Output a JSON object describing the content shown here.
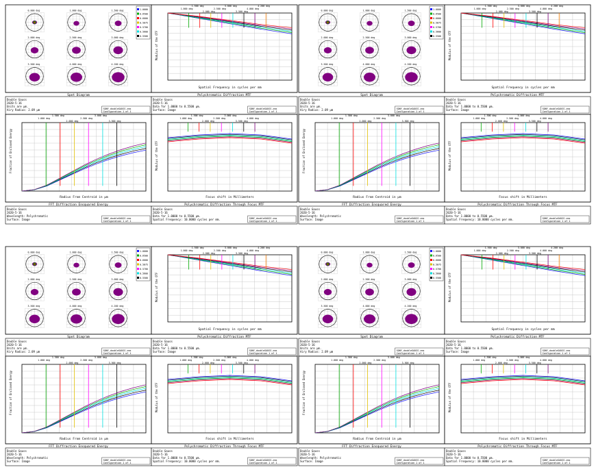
{
  "panel_titles": {
    "spot": "Spot Diagram",
    "mtf": "Polychromatic Diffraction MTF",
    "ee": "FFT Diffraction Ensquared Energy",
    "through_focus": "Polychromatic Diffraction Through Focus MTF"
  },
  "axis_labels": {
    "mtf_x": "Spatial Frequency in cycles per mm",
    "mtf_y": "Modulus of the OTF",
    "ee_x": "Radius From Centroid in µm",
    "ee_y": "Fraction of Enclosed Energy",
    "tf_x": "Focus shift in Millimeters",
    "tf_y": "Modulus of the OTF"
  },
  "info_text": {
    "spot_lines": [
      "Double Gauss",
      "2020-5-16",
      "Units are µm.",
      "Airy Radius: 2.09 µm"
    ],
    "mtf_lines": [
      "Double Gauss",
      "2020-5-16",
      "Data for 1.0000 to 0.5500 µm.",
      "Surface: Image"
    ],
    "ee_lines": [
      "Double Gauss",
      "2020-5-16",
      "Wavelength: Polychromatic",
      "Surface: Image"
    ],
    "tf_lines": [
      "Double Gauss",
      "2020-5-16",
      "Data for 1.0000 to 0.5500 µm.",
      "Spatial Frequency: 10.0000 cycles per mm."
    ],
    "file_name": "SONY_doubleGAUSS.zmx",
    "configuration": "Configuration 1 of 1"
  },
  "field_labels": [
    "0.000 deg",
    "1.000 deg",
    "1.500 deg",
    "2.000 deg",
    "2.500 deg",
    "3.000 deg",
    "3.500 deg",
    "4.000 deg",
    "4.200 deg"
  ],
  "wavelength_legend": [
    "1.0000",
    "0.6500",
    "0.6000",
    "0.5875",
    "0.5700",
    "0.5600",
    "0.5500"
  ],
  "colors": {
    "series": [
      "#1a1aff",
      "#00aa00",
      "#ff0000",
      "#e0c000",
      "#ff00ff",
      "#00e0e0",
      "#000000",
      "#800080",
      "#ff8000"
    ],
    "spot_fill": "#800080",
    "grid": "#bdbdbd",
    "frame": "#000000"
  },
  "chart_data": [
    {
      "type": "line",
      "title": "Polychromatic Diffraction MTF",
      "xlabel": "Spatial Frequency in cycles per mm",
      "ylabel": "Modulus of the OTF",
      "xlim": [
        0,
        20
      ],
      "ylim": [
        0,
        1
      ],
      "x": [
        0,
        5,
        10,
        15,
        20
      ],
      "series_low": [
        1.0,
        0.92,
        0.84,
        0.76,
        0.69
      ],
      "series_high": [
        1.0,
        0.95,
        0.89,
        0.83,
        0.78
      ]
    },
    {
      "type": "line",
      "title": "FFT Diffraction Ensquared Energy",
      "xlabel": "Radius From Centroid in µm",
      "ylabel": "Fraction of Enclosed Energy",
      "xlim": [
        0,
        5
      ],
      "ylim": [
        0,
        1
      ],
      "x": [
        0,
        0.5,
        1,
        1.5,
        2,
        2.5,
        3,
        3.5,
        4,
        4.5,
        5
      ],
      "values": [
        0,
        0.02,
        0.08,
        0.17,
        0.26,
        0.35,
        0.43,
        0.5,
        0.56,
        0.61,
        0.65
      ]
    },
    {
      "type": "line",
      "title": "Polychromatic Diffraction Through Focus MTF",
      "xlabel": "Focus shift in Millimeters",
      "ylabel": "Modulus of the OTF",
      "xlim": [
        -0.05,
        0.05
      ],
      "ylim": [
        0,
        1
      ],
      "x": [
        -0.05,
        -0.025,
        0,
        0.025,
        0.05
      ],
      "values": [
        0.78,
        0.82,
        0.84,
        0.82,
        0.76
      ]
    }
  ]
}
